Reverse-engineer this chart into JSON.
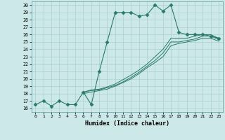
{
  "xlabel": "Humidex (Indice chaleur)",
  "ylabel": "",
  "background_color": "#cce8e8",
  "line_color": "#2a7a6a",
  "grid_color": "#aacfcf",
  "xlim": [
    -0.5,
    23.5
  ],
  "ylim": [
    15.5,
    30.5
  ],
  "xticks": [
    0,
    1,
    2,
    3,
    4,
    5,
    6,
    7,
    8,
    9,
    10,
    11,
    12,
    13,
    14,
    15,
    16,
    17,
    18,
    19,
    20,
    21,
    22,
    23
  ],
  "yticks": [
    16,
    17,
    18,
    19,
    20,
    21,
    22,
    23,
    24,
    25,
    26,
    27,
    28,
    29,
    30
  ],
  "lines": [
    {
      "x": [
        0,
        1,
        2,
        3,
        4,
        5,
        6,
        7,
        8,
        9,
        10,
        11,
        12,
        13,
        14,
        15,
        16,
        17,
        18,
        19,
        20,
        21,
        22,
        23
      ],
      "y": [
        16.5,
        17.0,
        16.3,
        17.0,
        16.5,
        16.5,
        18.2,
        16.5,
        21.0,
        25.0,
        29.0,
        29.0,
        29.0,
        28.5,
        28.7,
        30.0,
        29.2,
        30.0,
        26.3,
        26.0,
        26.0,
        26.0,
        25.8,
        25.5
      ],
      "marker": "D",
      "ms": 2.5
    },
    {
      "x": [
        6,
        7,
        8,
        9,
        10,
        11,
        12,
        13,
        14,
        15,
        16,
        17,
        18,
        19,
        20,
        21,
        22,
        23
      ],
      "y": [
        18.2,
        18.5,
        18.6,
        18.9,
        19.3,
        19.9,
        20.5,
        21.2,
        22.0,
        23.0,
        24.0,
        25.5,
        25.5,
        25.5,
        25.8,
        26.0,
        26.0,
        25.5
      ],
      "marker": null,
      "ms": 0
    },
    {
      "x": [
        6,
        7,
        8,
        9,
        10,
        11,
        12,
        13,
        14,
        15,
        16,
        17,
        18,
        19,
        20,
        21,
        22,
        23
      ],
      "y": [
        18.2,
        18.4,
        18.5,
        18.8,
        19.1,
        19.6,
        20.2,
        20.9,
        21.7,
        22.5,
        23.5,
        25.0,
        25.0,
        25.2,
        25.4,
        25.8,
        25.8,
        25.3
      ],
      "marker": null,
      "ms": 0
    },
    {
      "x": [
        6,
        7,
        8,
        9,
        10,
        11,
        12,
        13,
        14,
        15,
        16,
        17,
        18,
        19,
        20,
        21,
        22,
        23
      ],
      "y": [
        18.0,
        18.2,
        18.4,
        18.6,
        19.0,
        19.5,
        20.0,
        20.7,
        21.5,
        22.2,
        23.0,
        24.5,
        24.8,
        25.0,
        25.2,
        25.5,
        25.5,
        25.1
      ],
      "marker": null,
      "ms": 0
    }
  ]
}
